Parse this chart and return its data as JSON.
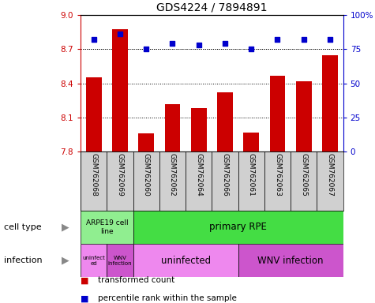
{
  "title": "GDS4224 / 7894891",
  "samples": [
    "GSM762068",
    "GSM762069",
    "GSM762060",
    "GSM762062",
    "GSM762064",
    "GSM762066",
    "GSM762061",
    "GSM762063",
    "GSM762065",
    "GSM762067"
  ],
  "transformed_count": [
    8.45,
    8.875,
    7.96,
    8.22,
    8.18,
    8.32,
    7.97,
    8.47,
    8.42,
    8.65
  ],
  "percentile_rank": [
    82,
    86,
    75,
    79,
    78,
    79,
    75,
    82,
    82,
    82
  ],
  "ylim": [
    7.8,
    9.0
  ],
  "yticks": [
    7.8,
    8.1,
    8.4,
    8.7,
    9.0
  ],
  "ylim_right": [
    0,
    100
  ],
  "yticks_right": [
    0,
    25,
    50,
    75,
    100
  ],
  "bar_color": "#cc0000",
  "dot_color": "#0000cc",
  "cell_type_label1": "ARPE19 cell\nline",
  "cell_type_label2": "primary RPE",
  "cell_color1": "#90ee90",
  "cell_color2": "#44dd44",
  "inf_label_A": "uninfect\ned",
  "inf_label_B": "WNV\ninfection",
  "inf_label_C": "uninfected",
  "inf_label_D": "WNV infection",
  "inf_color_light": "#ee88ee",
  "inf_color_dark": "#cc55cc",
  "legend_red": "transformed count",
  "legend_blue": "percentile rank within the sample",
  "row_label_cell": "cell type",
  "row_label_infection": "infection",
  "bg_sample": "#d0d0d0",
  "title_fontsize": 10,
  "bar_width": 0.6
}
